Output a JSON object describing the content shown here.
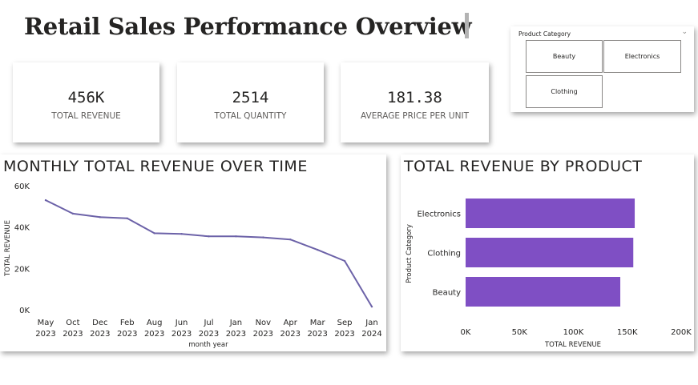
{
  "report": {
    "title": "Retail Sales Performance Overview"
  },
  "kpis": [
    {
      "value": "456K",
      "label": "TOTAL REVENUE"
    },
    {
      "value": "2514",
      "label": "TOTAL QUANTITY"
    },
    {
      "value": "181.38",
      "label": "AVERAGE PRICE PER UNIT"
    }
  ],
  "slicer": {
    "title": "Product Category",
    "options": [
      "Beauty",
      "Electronics",
      "Clothing"
    ],
    "chevron_icon": "chevron-down-icon"
  },
  "colors": {
    "line": "#6c62a8",
    "bar": "#7f4fc4"
  },
  "chart_data": [
    {
      "type": "line",
      "title": "MONTHLY TOTAL REVENUE OVER TIME",
      "xlabel": "month year",
      "ylabel": "TOTAL REVENUE",
      "categories": [
        [
          "May",
          "2023"
        ],
        [
          "Oct",
          "2023"
        ],
        [
          "Dec",
          "2023"
        ],
        [
          "Feb",
          "2023"
        ],
        [
          "Aug",
          "2023"
        ],
        [
          "Jun",
          "2023"
        ],
        [
          "Jul",
          "2023"
        ],
        [
          "Jan",
          "2023"
        ],
        [
          "Nov",
          "2023"
        ],
        [
          "Apr",
          "2023"
        ],
        [
          "Mar",
          "2023"
        ],
        [
          "Sep",
          "2023"
        ],
        [
          "Jan",
          "2024"
        ]
      ],
      "values": [
        53000,
        46500,
        44800,
        44200,
        37000,
        36700,
        35500,
        35500,
        35000,
        34000,
        29000,
        23600,
        1500
      ],
      "yticks": [
        "0K",
        "20K",
        "40K",
        "60K"
      ],
      "ylim": [
        0,
        60000
      ],
      "grid": false
    },
    {
      "type": "bar",
      "orientation": "horizontal",
      "title": "TOTAL REVENUE BY PRODUCT",
      "xlabel": "TOTAL REVENUE",
      "ylabel": "Product Category",
      "categories": [
        "Electronics",
        "Clothing",
        "Beauty"
      ],
      "values": [
        156905,
        155580,
        143515
      ],
      "xticks": [
        "0K",
        "50K",
        "100K",
        "150K",
        "200K"
      ],
      "xlim": [
        0,
        200000
      ],
      "grid": false
    }
  ]
}
